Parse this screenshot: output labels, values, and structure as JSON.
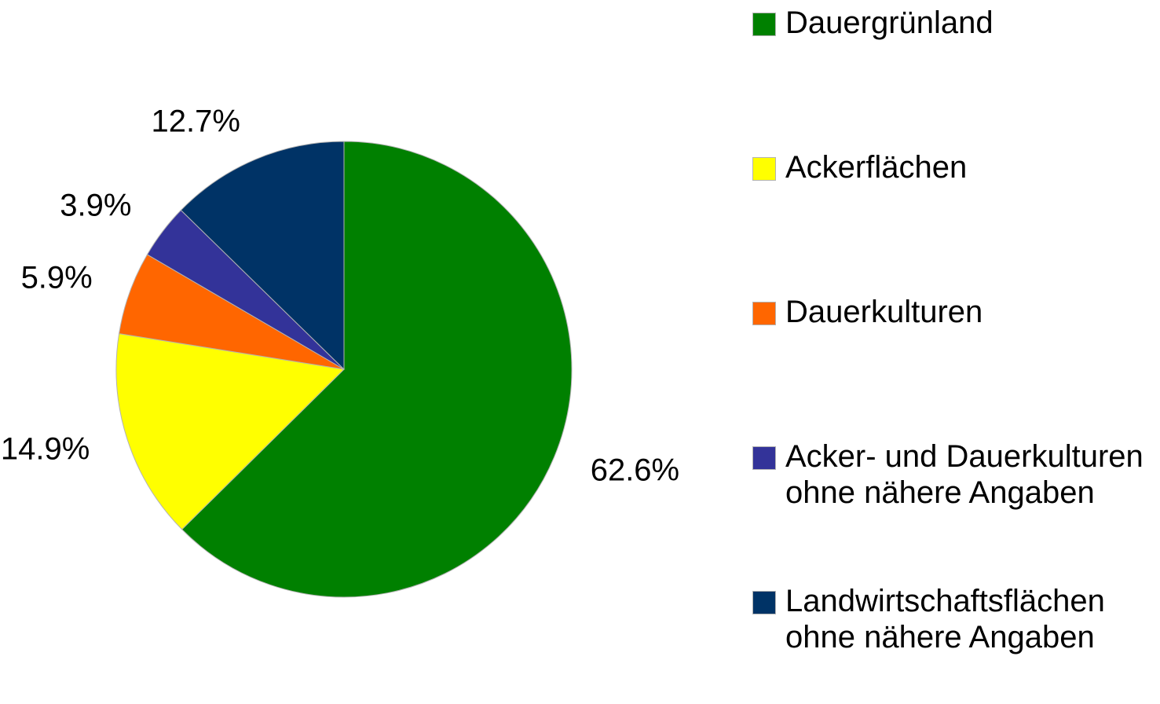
{
  "chart_data": {
    "type": "pie",
    "categories": [
      "Dauergrünland",
      "Ackerflächen",
      "Dauerkulturen",
      "Acker- und Dauerkulturen ohne nähere Angaben",
      "Landwirtschaftsflächen ohne nähere Angaben"
    ],
    "values": [
      62.6,
      14.9,
      5.9,
      3.9,
      12.7
    ],
    "value_labels": [
      "62.6%",
      "14.9%",
      "5.9%",
      "3.9%",
      "12.7%"
    ],
    "colors": [
      "#008000",
      "#ffff00",
      "#ff6600",
      "#333399",
      "#003366"
    ],
    "legend": "right"
  }
}
